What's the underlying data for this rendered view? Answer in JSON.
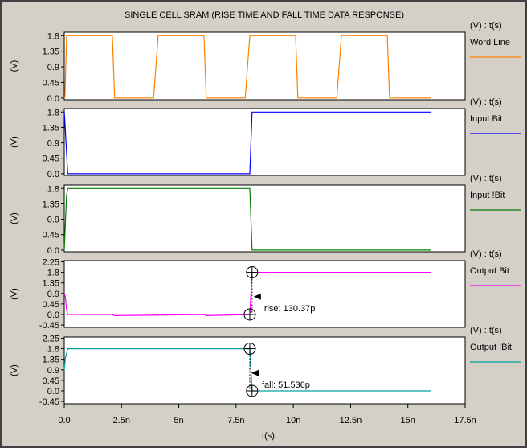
{
  "chart_data": {
    "type": "line",
    "title": "SINGLE CELL SRAM (RISE TIME AND FALL TIME DATA RESPONSE)",
    "xlabel": "t(s)",
    "xlim": [
      0,
      17.5
    ],
    "xticks": [
      "0.0",
      "2.5n",
      "5n",
      "7.5n",
      "10n",
      "12.5n",
      "15n",
      "17.5n"
    ],
    "xtick_values": [
      0,
      2.5,
      5,
      7.5,
      10,
      12.5,
      15,
      17.5
    ],
    "x_unit": "ns",
    "panels": [
      {
        "ylabel": "(V)",
        "unit_label": "(V) : t(s)",
        "legend": "Word Line",
        "color": "#ff8000",
        "ylim": [
          -0.05,
          1.9
        ],
        "yticks": [
          "1.8",
          "1.35",
          "0.9",
          "0.45",
          "0.0"
        ],
        "ytick_values": [
          1.8,
          1.35,
          0.9,
          0.45,
          0.0
        ],
        "x": [
          0,
          0.03,
          0.1,
          0.15,
          2.1,
          2.2,
          3.9,
          4.1,
          6.1,
          6.2,
          7.9,
          8.1,
          10.1,
          10.2,
          11.9,
          12.1,
          14.1,
          14.2,
          16.0
        ],
        "y": [
          0.0,
          0.05,
          1.8,
          1.8,
          1.8,
          0.0,
          0.0,
          1.8,
          1.8,
          0.0,
          0.0,
          1.8,
          1.8,
          0.0,
          0.0,
          1.8,
          1.8,
          0.0,
          0.0
        ]
      },
      {
        "ylabel": "(V)",
        "unit_label": "(V) : t(s)",
        "legend": "Input Bit",
        "color": "#0000ff",
        "ylim": [
          -0.05,
          1.9
        ],
        "yticks": [
          "1.8",
          "1.35",
          "0.9",
          "0.45",
          "0.0"
        ],
        "ytick_values": [
          1.8,
          1.35,
          0.9,
          0.45,
          0.0
        ],
        "x": [
          0,
          0.02,
          0.15,
          8.1,
          8.2,
          16.0
        ],
        "y": [
          1.8,
          1.6,
          0.0,
          0.0,
          1.8,
          1.8
        ]
      },
      {
        "ylabel": "(V)",
        "unit_label": "(V) : t(s)",
        "legend": "Input !Bit",
        "color": "#008000",
        "ylim": [
          -0.05,
          1.9
        ],
        "yticks": [
          "1.8",
          "1.35",
          "0.9",
          "0.45",
          "0.0"
        ],
        "ytick_values": [
          1.8,
          1.35,
          0.9,
          0.45,
          0.0
        ],
        "x": [
          0,
          0.1,
          0.15,
          8.1,
          8.2,
          16.0
        ],
        "y": [
          0.0,
          1.6,
          1.8,
          1.8,
          0.0,
          0.0
        ]
      },
      {
        "ylabel": "(V)",
        "unit_label": "(V) : t(s)",
        "legend": "Output Bit",
        "color": "#ff00ff",
        "ylim": [
          -0.55,
          2.3
        ],
        "yticks": [
          "2.25",
          "1.8",
          "1.35",
          "0.9",
          "0.45",
          "0.0",
          "-0.45"
        ],
        "ytick_values": [
          2.25,
          1.8,
          1.35,
          0.9,
          0.45,
          0.0,
          -0.45
        ],
        "x": [
          0,
          0.05,
          0.1,
          0.15,
          2.1,
          2.2,
          6.1,
          6.2,
          8.1,
          8.2,
          16.0
        ],
        "y": [
          0.9,
          0.75,
          0.2,
          0.0,
          0.0,
          -0.05,
          0.0,
          -0.05,
          0.0,
          1.8,
          1.8
        ],
        "markers": [
          {
            "x": 8.2,
            "y": 1.8
          },
          {
            "x": 8.1,
            "y": 0.0
          }
        ],
        "annotation": "rise: 130.37p",
        "annotation_y": 0.9
      },
      {
        "ylabel": "(V)",
        "unit_label": "(V) : t(s)",
        "legend": "Output !Bit",
        "color": "#00a0a0",
        "ylim": [
          -0.55,
          2.3
        ],
        "yticks": [
          "2.25",
          "1.8",
          "1.35",
          "0.9",
          "0.45",
          "0.0",
          "-0.45"
        ],
        "ytick_values": [
          2.25,
          1.8,
          1.35,
          0.9,
          0.45,
          0.0,
          -0.45
        ],
        "x": [
          0,
          0.05,
          0.15,
          8.1,
          8.2,
          16.0
        ],
        "y": [
          0.9,
          1.4,
          1.8,
          1.8,
          0.0,
          0.0
        ],
        "markers": [
          {
            "x": 8.1,
            "y": 1.8
          },
          {
            "x": 8.2,
            "y": 0.0
          }
        ],
        "annotation": "fall: 51.536p",
        "annotation_y": 0.9
      }
    ]
  }
}
